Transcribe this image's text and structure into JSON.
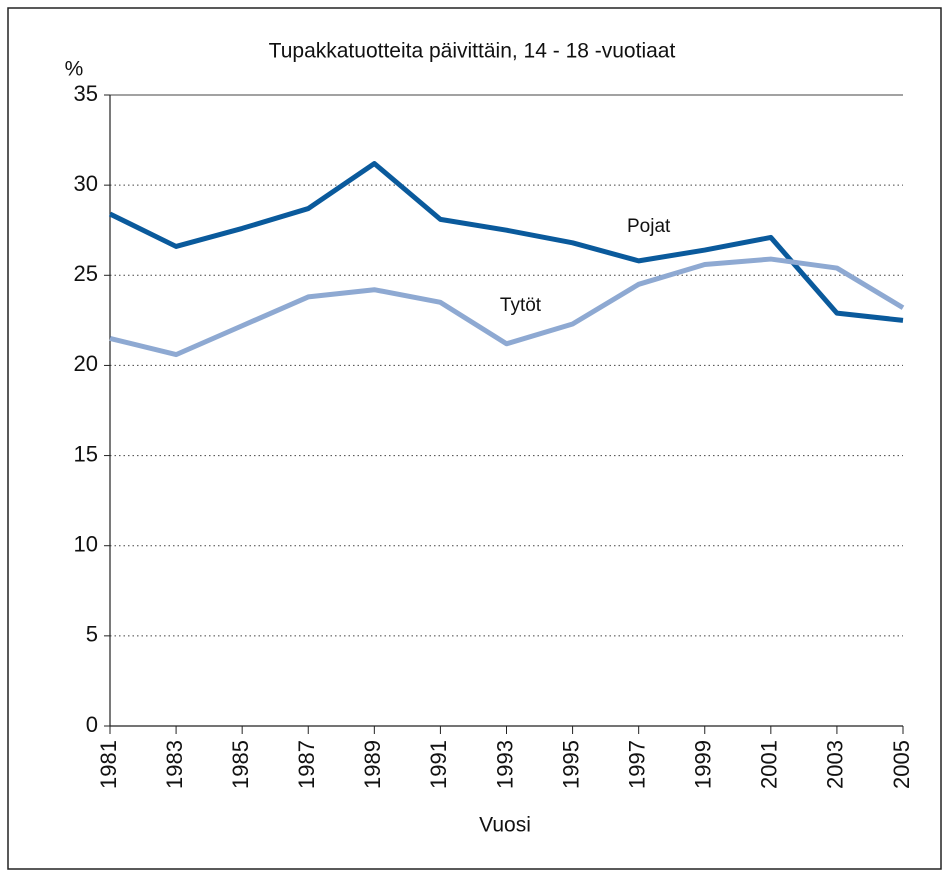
{
  "chart_data": {
    "type": "line",
    "title": "Tupakkatuotteita päivittäin, 14 - 18 -vuotiaat",
    "y_label": "%",
    "x_label": "Vuosi",
    "categories": [
      "1981",
      "1983",
      "1985",
      "1987",
      "1989",
      "1991",
      "1993",
      "1995",
      "1997",
      "1999",
      "2001",
      "2003",
      "2005"
    ],
    "series": [
      {
        "name": "Pojat",
        "color": "#0a5a9c",
        "values": [
          28.4,
          26.6,
          27.6,
          28.7,
          31.2,
          28.1,
          27.5,
          26.8,
          25.8,
          26.4,
          27.1,
          22.9,
          22.5
        ]
      },
      {
        "name": "Tytöt",
        "color": "#8ea9d2",
        "values": [
          21.5,
          20.6,
          22.2,
          23.8,
          24.2,
          23.5,
          21.2,
          22.3,
          24.5,
          25.6,
          25.9,
          25.4,
          23.2
        ]
      }
    ],
    "ylim": [
      0,
      35
    ],
    "yticks": [
      0,
      5,
      10,
      15,
      20,
      25,
      30,
      35
    ],
    "grid": true
  }
}
